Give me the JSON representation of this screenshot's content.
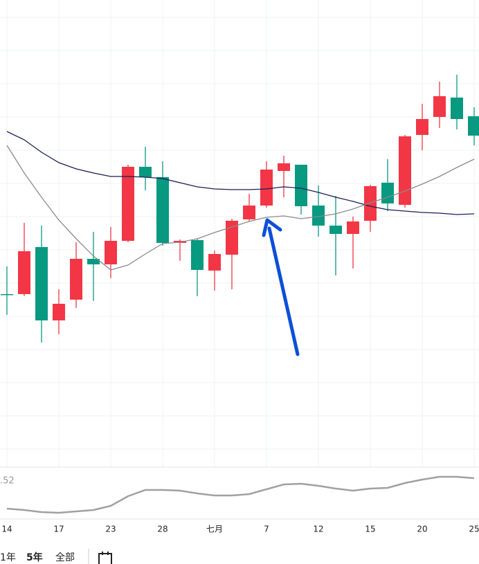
{
  "chart_data": [
    {
      "type": "candlestick",
      "categories": [
        "14",
        null,
        null,
        "17",
        null,
        null,
        "23",
        null,
        null,
        "28",
        null,
        null,
        "七月",
        null,
        null,
        "7",
        null,
        null,
        "12",
        null,
        null,
        "15",
        null,
        null,
        "20",
        null,
        null,
        "25"
      ],
      "open": [
        245,
        245,
        313,
        207,
        237,
        296,
        288,
        322,
        429,
        414,
        319,
        323,
        279,
        302,
        353,
        373,
        423,
        432,
        373,
        344,
        332,
        351,
        406,
        374,
        475,
        501,
        529,
        502
      ],
      "high": [
        285,
        348,
        344,
        252,
        320,
        335,
        342,
        432,
        458,
        437,
        324,
        325,
        308,
        354,
        390,
        437,
        445,
        432,
        402,
        387,
        357,
        403,
        440,
        475,
        520,
        552,
        562,
        515
      ],
      "low": [
        215,
        242,
        175,
        187,
        225,
        235,
        268,
        320,
        395,
        315,
        293,
        242,
        250,
        252,
        350,
        370,
        385,
        360,
        328,
        272,
        282,
        335,
        365,
        370,
        453,
        485,
        483,
        460
      ],
      "close": [
        244,
        307,
        207,
        231,
        296,
        288,
        322,
        429,
        414,
        319,
        322,
        280,
        303,
        351,
        373,
        425,
        434,
        372,
        344,
        332,
        350,
        401,
        376,
        473,
        498,
        531,
        498,
        474
      ],
      "up_color": "#f23645",
      "down_color": "#089981",
      "series": [
        {
          "color": "#1c1c55",
          "values": [
            480,
            468,
            450,
            435,
            426,
            420,
            415,
            415,
            414,
            412,
            406,
            400,
            397,
            396,
            396,
            397,
            400,
            398,
            392,
            385,
            379,
            372,
            367,
            365,
            363,
            362,
            360,
            361
          ]
        },
        {
          "color": "#8a8a8a",
          "values": [
            460,
            420,
            385,
            352,
            325,
            300,
            280,
            287,
            303,
            318,
            320,
            325,
            334,
            342,
            350,
            356,
            358,
            354,
            357,
            361,
            368,
            377,
            385,
            394,
            404,
            415,
            428,
            440
          ]
        }
      ],
      "ylim": [
        0,
        670
      ]
    },
    {
      "type": "line",
      "label": ".52",
      "series": [
        {
          "color": "#a0a0a0",
          "values": [
            15,
            13,
            10,
            9,
            11,
            13,
            19,
            33,
            42,
            42,
            41,
            37,
            34,
            34,
            36,
            43,
            50,
            51,
            48,
            44,
            41,
            44,
            45,
            52,
            57,
            61,
            61,
            59
          ]
        }
      ],
      "ylim": [
        0,
        70
      ]
    }
  ],
  "toolbar": {
    "buttons": [
      "1年",
      "5年",
      "全部"
    ]
  }
}
